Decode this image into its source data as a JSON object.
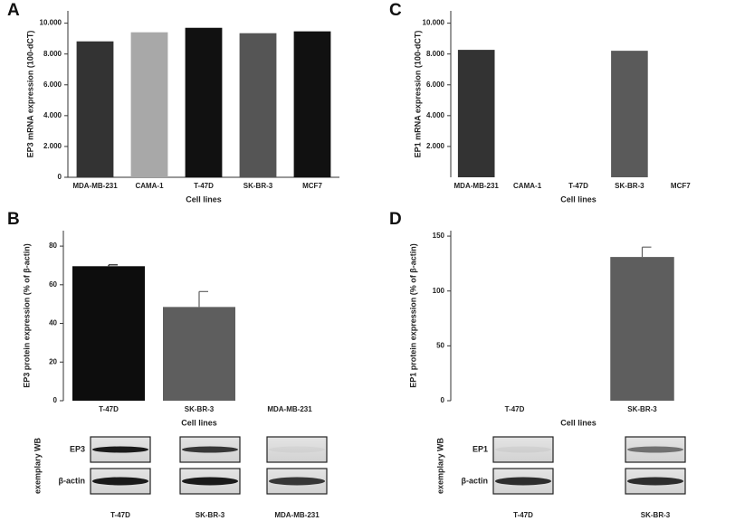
{
  "chart_data": [
    {
      "type": "bar",
      "panel": "A",
      "y_label": "EP3 mRNA expression (100-dCT)",
      "x_label": "Cell lines",
      "categories": [
        "MDA-MB-231",
        "CAMA-1",
        "T-47D",
        "SK-BR-3",
        "MCF7"
      ],
      "values": [
        8.82,
        9.41,
        9.7,
        9.35,
        9.47
      ],
      "colors": [
        "#333333",
        "#a8a8a8",
        "#111111",
        "#555555",
        "#111111"
      ],
      "ylim": [
        0,
        10.8
      ],
      "yticks": [
        0,
        {
          "value": 2,
          "label": "2.000"
        },
        {
          "value": 4,
          "label": "4.000"
        },
        {
          "value": 6,
          "label": "6.000"
        },
        {
          "value": 8,
          "label": "8.000"
        },
        {
          "value": 10,
          "label": "10.000"
        }
      ]
    },
    {
      "type": "bar",
      "panel": "B",
      "y_label": "EP3 protein expression (% of β-actin)",
      "x_label": "Cell lines",
      "categories": [
        "T-47D",
        "SK-BR-3",
        "MDA-MB-231"
      ],
      "values": [
        69.6,
        48.5,
        0
      ],
      "errors": [
        0.7,
        8,
        null
      ],
      "colors": [
        "#0d0d0d",
        "#5e5e5e",
        "#5e5e5e"
      ],
      "ylim": [
        0,
        88
      ],
      "yticks": [
        0,
        20,
        40,
        60,
        80
      ],
      "western_blot": {
        "label": "exemplary WB",
        "rows": [
          "EP3",
          "β-actin"
        ],
        "lanes": [
          "T-47D",
          "SK-BR-3",
          "MDA-MB-231"
        ]
      }
    },
    {
      "type": "bar",
      "panel": "C",
      "y_label": "EP1 mRNA expression (100-dCT)",
      "x_label": "Cell lines",
      "categories": [
        "MDA-MB-231",
        "CAMA-1",
        "T-47D",
        "SK-BR-3",
        "MCF7"
      ],
      "values": [
        8.27,
        0,
        0,
        8.21,
        0
      ],
      "colors": [
        "#333333",
        "#a8a8a8",
        "#111111",
        "#5a5a5a",
        "#111111"
      ],
      "ylim": [
        0,
        10.8
      ],
      "yticks": [
        {
          "value": 2,
          "label": "2.000"
        },
        {
          "value": 4,
          "label": "4.000"
        },
        {
          "value": 6,
          "label": "6.000"
        },
        {
          "value": 8,
          "label": "8.000"
        },
        {
          "value": 10,
          "label": "10.000"
        }
      ]
    },
    {
      "type": "bar",
      "panel": "D",
      "y_label": "EP1 protein expression (% of β-actin)",
      "x_label": "Cell lines",
      "categories": [
        "T-47D",
        "SK-BR-3"
      ],
      "values": [
        0,
        131
      ],
      "errors": [
        null,
        9
      ],
      "colors": [
        "#5e5e5e",
        "#5e5e5e"
      ],
      "ylim": [
        0,
        155
      ],
      "yticks": [
        0,
        50,
        100,
        150
      ],
      "western_blot": {
        "label": "exemplary WB",
        "rows": [
          "EP1",
          "β-actin"
        ],
        "lanes": [
          "T-47D",
          "SK-BR-3"
        ]
      }
    }
  ]
}
